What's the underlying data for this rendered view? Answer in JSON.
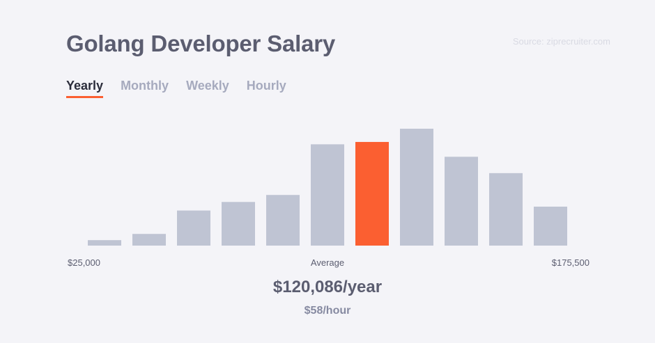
{
  "title": "Golang Developer Salary",
  "source": "Source: ziprecruiter.com",
  "tabs": [
    {
      "label": "Yearly",
      "active": true
    },
    {
      "label": "Monthly",
      "active": false
    },
    {
      "label": "Weekly",
      "active": false
    },
    {
      "label": "Hourly",
      "active": false
    }
  ],
  "colors": {
    "bar": "#bfc4d3",
    "highlight": "#fb5f31",
    "accent_underline": "#fb5f31"
  },
  "chart_data": {
    "type": "bar",
    "x_min_label": "$25,000",
    "x_avg_label": "Average",
    "x_max_label": "$175,500",
    "values": [
      7,
      15,
      45,
      56,
      65,
      130,
      133,
      150,
      114,
      93,
      50
    ],
    "highlight_index": 6,
    "ylim": [
      0,
      150
    ],
    "grid": false,
    "legend": "none"
  },
  "summary": {
    "yearly": "$120,086/year",
    "hourly": "$58/hour"
  }
}
